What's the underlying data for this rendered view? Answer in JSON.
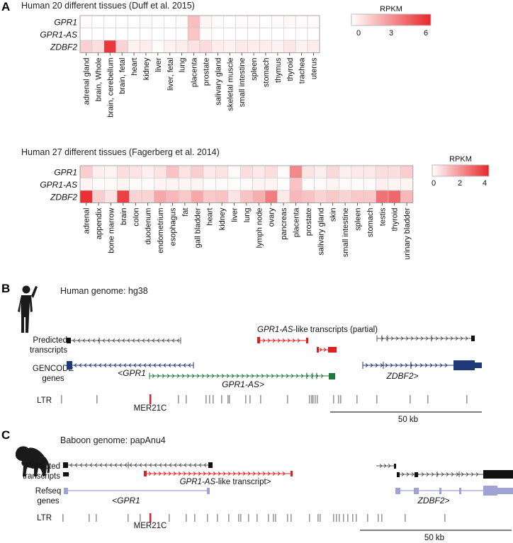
{
  "panel_a": {
    "label": "A",
    "heatmap1": {
      "title": "Human 20 different tissues (Duff et al. 2015)",
      "genes": [
        "GPR1",
        "GPR1-AS",
        "ZDBF2"
      ],
      "tissues": [
        "adrenal gland",
        "brain, Whole",
        "brain, cerebellum",
        "brain, fetal",
        "heart",
        "kidney",
        "liver",
        "liver, fetal",
        "lung",
        "placenta",
        "prostate",
        "salivary gland",
        "skeletal muscle",
        "small intestine",
        "spleen",
        "stomach",
        "thymus",
        "thyroid",
        "trachea",
        "uterus"
      ],
      "legend": {
        "title": "RPKM",
        "ticks": [
          "0",
          "3",
          "6"
        ]
      }
    },
    "heatmap2": {
      "title": "Human 27 different tissues (Fagerberg et al. 2014)",
      "genes": [
        "GPR1",
        "GPR1-AS",
        "ZDBF2"
      ],
      "tissues": [
        "adrenal",
        "appendix",
        "bone marrow",
        "brain",
        "colon",
        "duodenum",
        "endometrium",
        "esophagus",
        "fat",
        "gall bladder",
        "heart",
        "kidney",
        "liver",
        "lung",
        "lymph node",
        "ovary",
        "pancreas",
        "placenta",
        "prostate",
        "salivary gland",
        "skin",
        "small intestine",
        "spleen",
        "stomach",
        "testis",
        "thyroid",
        "urinary bladder"
      ],
      "legend": {
        "title": "RPKM",
        "ticks": [
          "0",
          "2",
          "4"
        ]
      }
    }
  },
  "chart_data": [
    {
      "type": "heatmap",
      "title": "Human 20 different tissues (Duff et al. 2015)",
      "rows": [
        "GPR1",
        "GPR1-AS",
        "ZDBF2"
      ],
      "columns": [
        "adrenal gland",
        "brain, Whole",
        "brain, cerebellum",
        "brain, fetal",
        "heart",
        "kidney",
        "liver",
        "liver, fetal",
        "lung",
        "placenta",
        "prostate",
        "salivary gland",
        "skeletal muscle",
        "small intestine",
        "spleen",
        "stomach",
        "thymus",
        "thyroid",
        "trachea",
        "uterus"
      ],
      "values": [
        [
          0.1,
          0.05,
          0.05,
          0.05,
          0.05,
          0.1,
          0.05,
          0.05,
          0.1,
          1.8,
          0.3,
          0.1,
          0.05,
          0.1,
          0.1,
          0.05,
          0.1,
          0.2,
          0.1,
          0.1
        ],
        [
          0.0,
          0.0,
          0.0,
          0.0,
          0.0,
          0.0,
          0.0,
          0.0,
          0.0,
          1.6,
          0.1,
          0.0,
          0.0,
          0.0,
          0.0,
          0.0,
          0.0,
          0.05,
          0.0,
          0.0
        ],
        [
          1.3,
          0.9,
          5.5,
          1.2,
          0.4,
          0.5,
          0.1,
          0.4,
          0.5,
          0.8,
          1.0,
          0.5,
          0.4,
          0.6,
          0.5,
          0.5,
          0.4,
          0.7,
          0.4,
          0.5
        ]
      ],
      "scale": {
        "min": 0,
        "max": 6,
        "label": "RPKM",
        "low_color": "#ffffff",
        "high_color": "#e8262a"
      }
    },
    {
      "type": "heatmap",
      "title": "Human 27 different tissues (Fagerberg et al. 2014)",
      "rows": [
        "GPR1",
        "GPR1-AS",
        "ZDBF2"
      ],
      "columns": [
        "adrenal",
        "appendix",
        "bone marrow",
        "brain",
        "colon",
        "duodenum",
        "endometrium",
        "esophagus",
        "fat",
        "gall bladder",
        "heart",
        "kidney",
        "liver",
        "lung",
        "lymph node",
        "ovary",
        "pancreas",
        "placenta",
        "prostate",
        "salivary gland",
        "skin",
        "small intestine",
        "spleen",
        "stomach",
        "testis",
        "thyroid",
        "urinary bladder"
      ],
      "values": [
        [
          0.9,
          0.3,
          0.2,
          0.6,
          0.5,
          0.3,
          0.5,
          1.1,
          0.5,
          0.9,
          0.4,
          0.5,
          0.1,
          0.6,
          0.4,
          0.6,
          0.1,
          2.2,
          0.5,
          0.3,
          0.7,
          0.3,
          0.4,
          0.4,
          0.6,
          0.6,
          0.9
        ],
        [
          0.2,
          0.1,
          0.1,
          0.2,
          0.1,
          0.1,
          0.2,
          0.2,
          0.2,
          0.2,
          0.1,
          0.1,
          0.05,
          0.1,
          0.2,
          0.2,
          0.05,
          1.1,
          0.1,
          0.1,
          0.2,
          0.1,
          0.1,
          0.1,
          0.3,
          0.2,
          0.2
        ],
        [
          3.8,
          0.9,
          0.5,
          3.5,
          0.8,
          0.8,
          1.6,
          1.3,
          1.0,
          1.6,
          1.0,
          1.1,
          0.5,
          1.1,
          1.5,
          2.4,
          0.4,
          1.3,
          1.1,
          0.8,
          1.0,
          0.8,
          1.0,
          1.0,
          2.6,
          2.8,
          1.3
        ]
      ],
      "scale": {
        "min": 0,
        "max": 4,
        "label": "RPKM",
        "low_color": "#ffffff",
        "high_color": "#e8262a"
      }
    }
  ],
  "panel_b": {
    "label": "B",
    "genome": "Human genome: hg38",
    "row_predicted": [
      "Predicted",
      "transcripts"
    ],
    "row_gencode": [
      "GENCODE",
      "genes"
    ],
    "row_ltr": "LTR",
    "gpr1_as_like_gene": "GPR1-AS",
    "gpr1_as_like_suffix": "-like transcripts (partial)",
    "gene_gpr1": "<GPR1",
    "gene_gpr1_as": "GPR1-AS>",
    "gene_zdbf2": "ZDBF2>",
    "mer21c": "MER21C",
    "scalebar": "50 kb",
    "colors": {
      "predicted": "#555555",
      "gencode_gpr1": "#1f3a78",
      "gencode_gpr1_as": "#1e7a3c",
      "gencode_zdbf2": "#1f3a78",
      "highlight": "#e02020"
    }
  },
  "panel_c": {
    "label": "C",
    "genome": "Baboon genome: papAnu4",
    "row_predicted": [
      "Predicted",
      "transcripts"
    ],
    "row_refseq": [
      "Refseq",
      "genes"
    ],
    "row_ltr": "LTR",
    "gpr1_as_like_gene": "GPR1-AS",
    "gpr1_as_like_suffix": "-like transcript>",
    "gene_gpr1": "<GPR1",
    "gene_zdbf2": "ZDBF2>",
    "mer21c": "MER21C",
    "scalebar": "50 kb",
    "colors": {
      "predicted": "#555555",
      "refseq": "#9ea3d4",
      "highlight": "#e02020"
    }
  },
  "icons": [
    "human-silhouette-icon",
    "baboon-silhouette-icon"
  ]
}
